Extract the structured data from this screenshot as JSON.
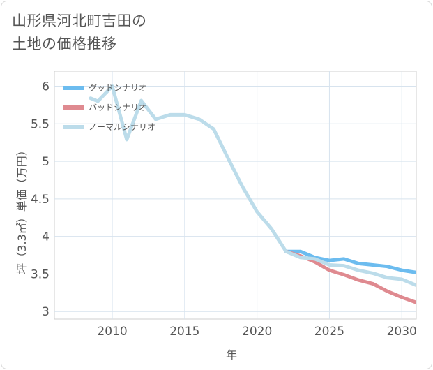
{
  "title": {
    "line1": "山形県河北町吉田の",
    "line2": "土地の価格推移"
  },
  "chart_data": {
    "type": "line",
    "xlabel": "年",
    "ylabel": "坪（3.3㎡）単価（万円）",
    "xlim": [
      2006,
      2031
    ],
    "ylim": [
      2.9,
      6.2
    ],
    "x_ticks": [
      "2010",
      "2015",
      "2020",
      "2025",
      "2030"
    ],
    "y_ticks": [
      "3",
      "3.5",
      "4",
      "4.5",
      "5",
      "5.5",
      "6"
    ],
    "grid": true,
    "legend_position": "top-left",
    "series": [
      {
        "name": "グッドシナリオ",
        "color": "#6cbcef",
        "points": [
          [
            2022,
            3.8
          ],
          [
            2023,
            3.8
          ],
          [
            2024,
            3.72
          ],
          [
            2025,
            3.68
          ],
          [
            2026,
            3.7
          ],
          [
            2027,
            3.64
          ],
          [
            2028,
            3.62
          ],
          [
            2029,
            3.6
          ],
          [
            2030,
            3.55
          ],
          [
            2031,
            3.52
          ]
        ]
      },
      {
        "name": "バッドシナリオ",
        "color": "#df8a90",
        "points": [
          [
            2022,
            3.8
          ],
          [
            2023,
            3.74
          ],
          [
            2024,
            3.66
          ],
          [
            2025,
            3.55
          ],
          [
            2026,
            3.49
          ],
          [
            2027,
            3.42
          ],
          [
            2028,
            3.37
          ],
          [
            2029,
            3.27
          ],
          [
            2030,
            3.19
          ],
          [
            2031,
            3.12
          ]
        ]
      },
      {
        "name": "ノーマルシナリオ",
        "color": "#bcdcea",
        "points": [
          [
            2008.5,
            5.84
          ],
          [
            2009,
            5.8
          ],
          [
            2010,
            6.0
          ],
          [
            2011,
            5.29
          ],
          [
            2012,
            5.81
          ],
          [
            2013,
            5.56
          ],
          [
            2014,
            5.62
          ],
          [
            2015,
            5.62
          ],
          [
            2016,
            5.56
          ],
          [
            2017,
            5.43
          ],
          [
            2018,
            5.04
          ],
          [
            2019,
            4.66
          ],
          [
            2020,
            4.33
          ],
          [
            2021,
            4.1
          ],
          [
            2022,
            3.8
          ],
          [
            2023,
            3.72
          ],
          [
            2024,
            3.7
          ],
          [
            2025,
            3.62
          ],
          [
            2026,
            3.61
          ],
          [
            2027,
            3.55
          ],
          [
            2028,
            3.51
          ],
          [
            2029,
            3.45
          ],
          [
            2030,
            3.43
          ],
          [
            2031,
            3.35
          ]
        ]
      }
    ]
  }
}
